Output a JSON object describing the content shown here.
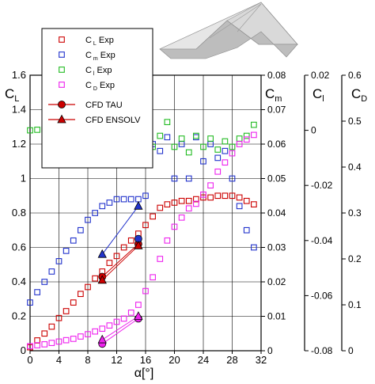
{
  "chart_data": {
    "type": "scatter",
    "xlabel": "α[°]",
    "x_ticks": [
      "0",
      "4",
      "8",
      "12",
      "16",
      "20",
      "24",
      "28",
      "32"
    ],
    "xlim": [
      0,
      32
    ],
    "grid": true,
    "legend_position": "top-left",
    "axes": {
      "cl": {
        "label": "C",
        "sub": "L",
        "ylim": [
          0,
          1.6
        ],
        "ticks": [
          "0",
          "0.2",
          "0.4",
          "0.6",
          "0.8",
          "1",
          "1.2",
          "1.4",
          "1.6"
        ]
      },
      "cm": {
        "label": "C",
        "sub": "m",
        "ylim": [
          0,
          0.08
        ],
        "ticks": [
          "0",
          "0.01",
          "0.02",
          "0.03",
          "0.04",
          "0.05",
          "0.06",
          "0.07",
          "0.08"
        ]
      },
      "cll": {
        "label": "C",
        "sub": "l",
        "ylim": [
          -0.08,
          0.02
        ],
        "ticks": [
          "-0.08",
          "-0.06",
          "-0.04",
          "-0.02",
          "0",
          "0.02"
        ]
      },
      "cd": {
        "label": "C",
        "sub": "D",
        "ylim": [
          0,
          0.6
        ],
        "ticks": [
          "0",
          "0.1",
          "0.2",
          "0.3",
          "0.4",
          "0.5",
          "0.6"
        ]
      }
    },
    "legend": [
      {
        "main": "C",
        "sub": "L",
        "tail": "Exp"
      },
      {
        "main": "C",
        "sub": "m",
        "tail": "Exp"
      },
      {
        "main": "C",
        "sub": "l",
        "tail": "Exp"
      },
      {
        "main": "C",
        "sub": "D",
        "tail": "Exp"
      },
      {
        "main": "CFD TAU",
        "sub": "",
        "tail": ""
      },
      {
        "main": "CFD ENSOLV",
        "sub": "",
        "tail": ""
      }
    ],
    "series": [
      {
        "key": "CL_exp",
        "axis": "cl",
        "marker": "square",
        "color": "#cc0000",
        "x": [
          0,
          1,
          2,
          3,
          4,
          5,
          6,
          7,
          8,
          9,
          10,
          11,
          12,
          13,
          14,
          15,
          16,
          17,
          18,
          19,
          20,
          21,
          22,
          23,
          24,
          25,
          26,
          27,
          28,
          29,
          30,
          31
        ],
        "y": [
          0.02,
          0.06,
          0.1,
          0.14,
          0.19,
          0.23,
          0.28,
          0.33,
          0.37,
          0.42,
          0.46,
          0.51,
          0.55,
          0.6,
          0.64,
          0.68,
          0.73,
          0.78,
          0.83,
          0.85,
          0.86,
          0.87,
          0.87,
          0.88,
          0.89,
          0.89,
          0.9,
          0.9,
          0.9,
          0.89,
          0.87,
          0.85
        ]
      },
      {
        "key": "Cm_exp",
        "axis": "cm",
        "marker": "square",
        "color": "#2233cc",
        "x": [
          0,
          1,
          2,
          3,
          4,
          5,
          6,
          7,
          8,
          9,
          10,
          11,
          12,
          13,
          14,
          15,
          16,
          17,
          18,
          19,
          20,
          21,
          22,
          23,
          24,
          25,
          26,
          27,
          28,
          29,
          30,
          31
        ],
        "y": [
          0.014,
          0.017,
          0.02,
          0.023,
          0.026,
          0.029,
          0.032,
          0.035,
          0.038,
          0.04,
          0.042,
          0.043,
          0.044,
          0.044,
          0.044,
          0.044,
          0.045,
          0.06,
          0.058,
          0.062,
          0.05,
          0.06,
          0.05,
          0.062,
          0.055,
          0.06,
          0.056,
          0.058,
          0.05,
          0.042,
          0.035,
          0.03
        ]
      },
      {
        "key": "Cl_exp",
        "axis": "cll",
        "marker": "square",
        "color": "#22bb22",
        "x": [
          0,
          1,
          2,
          3,
          4,
          5,
          6,
          7,
          8,
          9,
          10,
          11,
          12,
          13,
          14,
          15,
          16,
          17,
          18,
          19,
          20,
          21,
          22,
          23,
          24,
          25,
          26,
          27,
          28,
          29,
          30,
          31
        ],
        "y": [
          0,
          0.0002,
          0.0003,
          0.0004,
          0.0005,
          0.0005,
          0.0005,
          0.0005,
          0.0005,
          0.0005,
          0.0005,
          0.0005,
          0.0005,
          0.0005,
          0.0005,
          0.0005,
          -0.0005,
          -0.006,
          -0.002,
          0.003,
          -0.006,
          -0.003,
          -0.008,
          -0.002,
          -0.006,
          -0.003,
          -0.007,
          -0.004,
          -0.006,
          -0.003,
          -0.002,
          0.002
        ]
      },
      {
        "key": "CD_exp",
        "axis": "cd",
        "marker": "square",
        "color": "#ee22ee",
        "x": [
          0,
          1,
          2,
          3,
          4,
          5,
          6,
          7,
          8,
          9,
          10,
          11,
          12,
          13,
          14,
          15,
          16,
          17,
          18,
          19,
          20,
          21,
          22,
          23,
          24,
          25,
          26,
          27,
          28,
          29,
          30,
          31
        ],
        "y": [
          0.01,
          0.012,
          0.014,
          0.017,
          0.02,
          0.023,
          0.026,
          0.031,
          0.036,
          0.042,
          0.048,
          0.055,
          0.063,
          0.07,
          0.083,
          0.1,
          0.13,
          0.16,
          0.2,
          0.24,
          0.27,
          0.29,
          0.31,
          0.32,
          0.34,
          0.36,
          0.39,
          0.41,
          0.43,
          0.45,
          0.46,
          0.47
        ]
      },
      {
        "key": "CL_TAU",
        "axis": "cl",
        "marker": "circle",
        "color": "#cc0000",
        "x": [
          10,
          15
        ],
        "y": [
          0.43,
          0.62
        ]
      },
      {
        "key": "Cm_TAU",
        "axis": "cm",
        "marker": "circle",
        "color": "#2233cc",
        "x": [
          15
        ],
        "y": [
          0.0325
        ]
      },
      {
        "key": "CD_TAU",
        "axis": "cd",
        "marker": "circle",
        "color": "#ee22ee",
        "x": [
          10,
          15
        ],
        "y": [
          0.015,
          0.07
        ]
      },
      {
        "key": "CL_ENS",
        "axis": "cl",
        "marker": "triangle",
        "color": "#cc0000",
        "x": [
          10,
          15
        ],
        "y": [
          0.41,
          0.61
        ]
      },
      {
        "key": "Cm_ENS",
        "axis": "cm",
        "marker": "triangle",
        "color": "#2233cc",
        "x": [
          10,
          15
        ],
        "y": [
          0.028,
          0.042
        ]
      },
      {
        "key": "Cl_ENS",
        "axis": "cll",
        "marker": "triangle",
        "color": "#22bb22",
        "x": [
          10,
          15
        ],
        "y": [
          0.0003,
          0.0003
        ]
      },
      {
        "key": "CD_ENS",
        "axis": "cd",
        "marker": "triangle",
        "color": "#ee22ee",
        "x": [
          10,
          15
        ],
        "y": [
          0.024,
          0.075
        ]
      }
    ]
  }
}
